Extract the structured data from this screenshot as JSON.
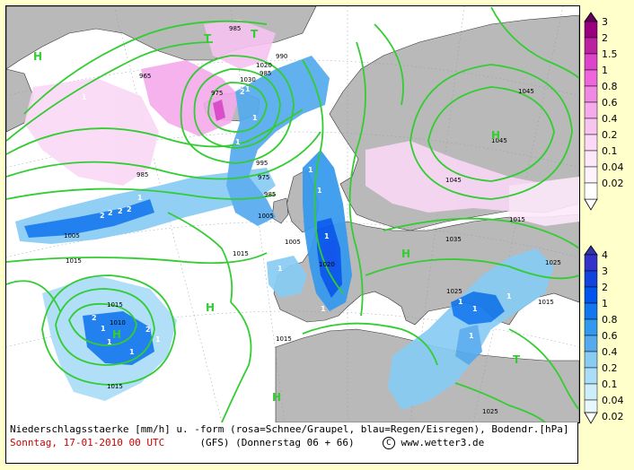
{
  "map": {
    "isobar_labels": [
      "985",
      "990",
      "985",
      "975",
      "965",
      "985",
      "995",
      "975",
      "985",
      "1005",
      "1005",
      "1005",
      "1015",
      "1015",
      "1020",
      "1015",
      "1015",
      "1025",
      "1025",
      "1035",
      "1045",
      "1045",
      "1045",
      "1015",
      "1015",
      "1025",
      "1020",
      "1030",
      "1010",
      "1015"
    ],
    "pressure_centers": [
      "H",
      "T",
      "T",
      "H",
      "H",
      "H",
      "H",
      "T",
      "H"
    ],
    "precip_numbers": [
      "1",
      "2",
      "2",
      "2",
      "2",
      "1",
      "1",
      "1",
      "1",
      "2",
      "1",
      "1",
      "1",
      "1",
      "2",
      "1",
      "1",
      "1",
      "1",
      "1",
      "1",
      "1",
      "2",
      "1",
      "1"
    ]
  },
  "legend_snow": {
    "values": [
      "3",
      "2",
      "1.5",
      "1",
      "0.8",
      "0.6",
      "0.4",
      "0.2",
      "0.1",
      "0.04",
      "0.02"
    ],
    "colors": [
      "#66005f",
      "#99007f",
      "#bb22a0",
      "#dd44cc",
      "#ee66dd",
      "#f088e4",
      "#f4aaec",
      "#f7c4f1",
      "#fad8f6",
      "#fde8fb",
      "#ffffff"
    ]
  },
  "legend_rain": {
    "values": [
      "4",
      "3",
      "2",
      "1",
      "0.8",
      "0.6",
      "0.4",
      "0.2",
      "0.1",
      "0.04",
      "0.02"
    ],
    "colors": [
      "#3333aa",
      "#3333cc",
      "#1144dd",
      "#0055ee",
      "#1177ee",
      "#3399ee",
      "#55aaee",
      "#88ccf4",
      "#aaddf7",
      "#cceefa",
      "#ffffff"
    ]
  },
  "caption": {
    "line1": "Niederschlagsstaerke [mm/h] u. -form (rosa=Schnee/Graupel, blau=Regen/Eisregen), Bodendr.[hPa]",
    "date": "Sonntag, 17-01-2010  00 UTC",
    "model": "(GFS)  (Donnerstag 06 + 66)",
    "site": "www.wetter3.de",
    "copyright_symbol": "C"
  },
  "colors": {
    "land": "#b9b9b9",
    "sea": "#ffffff",
    "isobar": "#33cc33",
    "grid": "#8899aa",
    "background": "#ffffcc"
  }
}
